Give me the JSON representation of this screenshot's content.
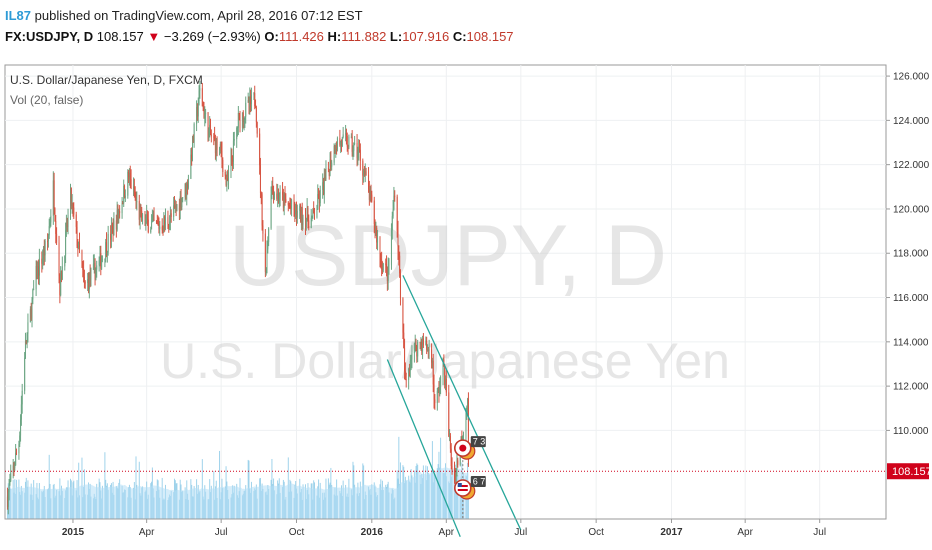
{
  "header": {
    "user": "IL87",
    "published": "published on TradingView.com, April 28, 2016 07:12 EST",
    "symbol": "FX:USDJPY, D",
    "price": "108.157",
    "change_arrow": "▼",
    "change": "−3.269 (−2.93%)",
    "o_label": "O:",
    "o_value": "111.426",
    "h_label": "H:",
    "h_value": "111.882",
    "l_label": "L:",
    "l_value": "107.916",
    "c_label": "C:",
    "c_value": "108.157"
  },
  "legend": {
    "title": "U.S. Dollar/Japanese Yen, D, FXCM",
    "volume": "Vol (20, false)"
  },
  "watermark": {
    "symbol": "USDJPY, D",
    "name": "U.S. Dollar/Japanese Yen"
  },
  "colors": {
    "up": "#6ba583",
    "down": "#d75442",
    "volume": "#8fcbe8",
    "volume_ma": "#b5def5",
    "channel": "#26a69a",
    "price_line": "#d0021b"
  },
  "chart_data": {
    "type": "candlestick",
    "x_range": [
      "2014-10-10",
      "2017-09-20"
    ],
    "y_range": [
      106.0,
      126.5
    ],
    "y_ticks": [
      "126.000",
      "124.000",
      "122.000",
      "120.000",
      "118.000",
      "116.000",
      "114.000",
      "112.000",
      "110.000"
    ],
    "x_ticks": [
      {
        "label": "2015",
        "date": "2015-01-01",
        "bold": true
      },
      {
        "label": "Apr",
        "date": "2015-04-01",
        "bold": false
      },
      {
        "label": "Jul",
        "date": "2015-07-01",
        "bold": false
      },
      {
        "label": "Oct",
        "date": "2015-10-01",
        "bold": false
      },
      {
        "label": "2016",
        "date": "2016-01-01",
        "bold": true
      },
      {
        "label": "Apr",
        "date": "2016-04-01",
        "bold": false
      },
      {
        "label": "Jul",
        "date": "2016-07-01",
        "bold": false
      },
      {
        "label": "Oct",
        "date": "2016-10-01",
        "bold": false
      },
      {
        "label": "2017",
        "date": "2017-01-01",
        "bold": true
      },
      {
        "label": "Apr",
        "date": "2017-04-01",
        "bold": false
      },
      {
        "label": "Jul",
        "date": "2017-07-01",
        "bold": false
      }
    ],
    "last_price": 108.157,
    "last_price_label": "108.157",
    "price_path": [
      [
        "2014-10-13",
        107.0
      ],
      [
        "2014-10-27",
        109.5
      ],
      [
        "2014-11-03",
        113.5
      ],
      [
        "2014-11-17",
        117.0
      ],
      [
        "2014-12-01",
        118.5
      ],
      [
        "2014-12-08",
        121.0
      ],
      [
        "2014-12-16",
        116.5
      ],
      [
        "2014-12-29",
        120.5
      ],
      [
        "2015-01-15",
        116.5
      ],
      [
        "2015-02-02",
        117.5
      ],
      [
        "2015-02-23",
        119.5
      ],
      [
        "2015-03-10",
        121.5
      ],
      [
        "2015-03-25",
        119.5
      ],
      [
        "2015-04-15",
        119.2
      ],
      [
        "2015-05-01",
        119.6
      ],
      [
        "2015-05-20",
        121.0
      ],
      [
        "2015-06-05",
        125.3
      ],
      [
        "2015-06-15",
        123.5
      ],
      [
        "2015-07-01",
        122.5
      ],
      [
        "2015-07-08",
        121.0
      ],
      [
        "2015-07-22",
        124.0
      ],
      [
        "2015-08-12",
        125.0
      ],
      [
        "2015-08-24",
        117.0
      ],
      [
        "2015-08-31",
        121.0
      ],
      [
        "2015-09-10",
        120.5
      ],
      [
        "2015-10-01",
        119.8
      ],
      [
        "2015-10-20",
        119.5
      ],
      [
        "2015-11-03",
        121.0
      ],
      [
        "2015-11-18",
        123.0
      ],
      [
        "2015-12-02",
        123.0
      ],
      [
        "2015-12-17",
        122.5
      ],
      [
        "2015-12-31",
        120.3
      ],
      [
        "2016-01-12",
        117.7
      ],
      [
        "2016-01-21",
        117.0
      ],
      [
        "2016-01-29",
        121.0
      ],
      [
        "2016-02-04",
        117.0
      ],
      [
        "2016-02-11",
        112.0
      ],
      [
        "2016-02-18",
        113.5
      ],
      [
        "2016-03-01",
        114.0
      ],
      [
        "2016-03-14",
        113.5
      ],
      [
        "2016-03-18",
        111.0
      ],
      [
        "2016-03-29",
        113.0
      ],
      [
        "2016-04-07",
        108.5
      ],
      [
        "2016-04-11",
        107.9
      ],
      [
        "2016-04-19",
        109.5
      ],
      [
        "2016-04-27",
        111.5
      ],
      [
        "2016-04-28",
        108.157
      ]
    ],
    "channel_lines": [
      {
        "from": [
          "2016-02-08",
          117.0
        ],
        "to": [
          "2016-07-01",
          105.5
        ]
      },
      {
        "from": [
          "2016-01-20",
          113.2
        ],
        "to": [
          "2016-04-18",
          105.2
        ]
      }
    ],
    "event_markers": [
      {
        "date": "2016-04-26",
        "price": 109.2,
        "badge": "7 3",
        "flag": "jp"
      },
      {
        "date": "2016-04-26",
        "price": 107.4,
        "badge": "6 7",
        "flag": "us"
      }
    ],
    "volume_range": [
      0,
      60
    ]
  }
}
